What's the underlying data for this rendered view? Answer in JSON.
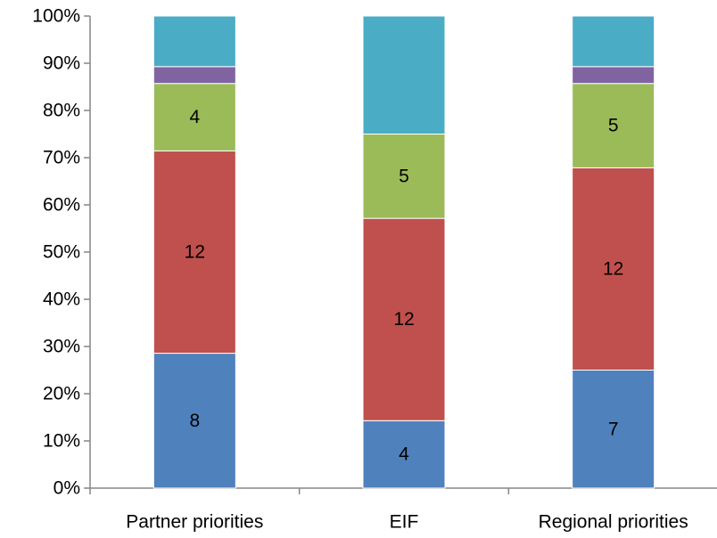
{
  "chart_data": {
    "type": "bar",
    "stacked": "percent",
    "title": "",
    "xlabel": "",
    "ylabel": "",
    "ylim": [
      0,
      100
    ],
    "yticks": [
      "0%",
      "10%",
      "20%",
      "30%",
      "40%",
      "50%",
      "60%",
      "70%",
      "80%",
      "90%",
      "100%"
    ],
    "grid": false,
    "legend": "none",
    "categories": [
      "Partner priorities",
      "EIF",
      "Regional priorities"
    ],
    "series": [
      {
        "color": "#4f81bd",
        "values": [
          8,
          4,
          7
        ],
        "labels": [
          "8",
          "4",
          "7"
        ]
      },
      {
        "color": "#c0504d",
        "values": [
          12,
          12,
          12
        ],
        "labels": [
          "12",
          "12",
          "12"
        ]
      },
      {
        "color": "#9bbb59",
        "values": [
          4,
          5,
          5
        ],
        "labels": [
          "4",
          "5",
          "5"
        ]
      },
      {
        "color": "#8064a2",
        "values": [
          1,
          0,
          1
        ],
        "labels": [
          "",
          "",
          ""
        ]
      },
      {
        "color": "#4bacc6",
        "values": [
          3,
          7,
          3
        ],
        "labels": [
          "",
          "",
          ""
        ]
      }
    ]
  }
}
